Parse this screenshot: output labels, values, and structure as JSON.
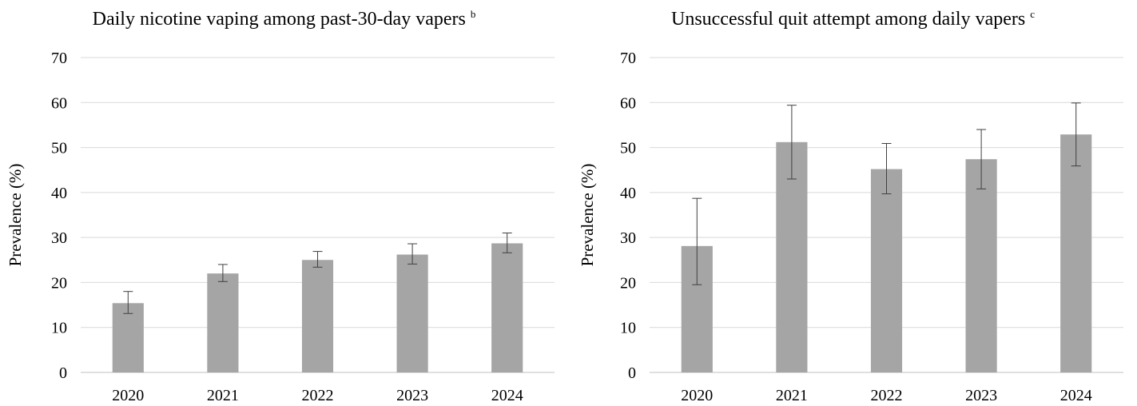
{
  "chart_data": [
    {
      "type": "bar",
      "title": "Daily nicotine vaping among past-30-day vapers",
      "title_superscript": "b",
      "xlabel": "",
      "ylabel": "Prevalence (%)",
      "ylim": [
        0,
        70
      ],
      "yticks": [
        "0",
        "10",
        "20",
        "30",
        "40",
        "50",
        "60",
        "70"
      ],
      "categories": [
        "2020",
        "2021",
        "2022",
        "2023",
        "2024"
      ],
      "values": [
        15.4,
        22.0,
        25.0,
        26.2,
        28.7
      ],
      "error_low": [
        13.1,
        20.2,
        23.4,
        24.1,
        26.6
      ],
      "error_high": [
        18.0,
        24.0,
        26.9,
        28.6,
        31.0
      ],
      "grid": true,
      "bar_color": "#a5a5a5"
    },
    {
      "type": "bar",
      "title": "Unsuccessful quit attempt among daily vapers",
      "title_superscript": "c",
      "xlabel": "",
      "ylabel": "Prevalence (%)",
      "ylim": [
        0,
        70
      ],
      "yticks": [
        "0",
        "10",
        "20",
        "30",
        "40",
        "50",
        "60",
        "70"
      ],
      "categories": [
        "2020",
        "2021",
        "2022",
        "2023",
        "2024"
      ],
      "values": [
        28.1,
        51.2,
        45.2,
        47.4,
        52.9
      ],
      "error_low": [
        19.5,
        43.0,
        39.7,
        40.8,
        45.9
      ],
      "error_high": [
        38.7,
        59.4,
        50.9,
        54.0,
        59.9
      ],
      "grid": true,
      "bar_color": "#a5a5a5"
    }
  ]
}
